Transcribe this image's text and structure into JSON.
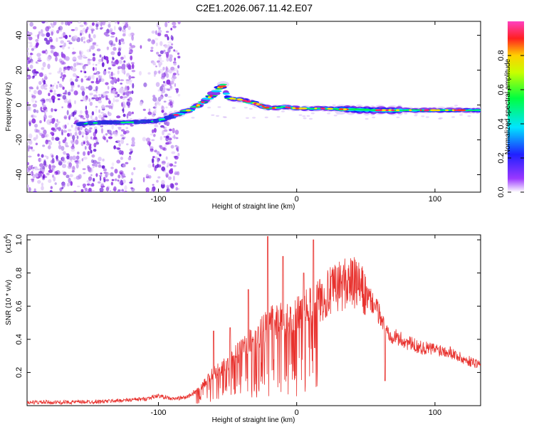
{
  "title": "C2E1.2026.067.11.42.E07",
  "chart_data": [
    {
      "type": "heatmap",
      "xlabel": "Height of straight line (km)",
      "ylabel": "Frequency (Hz)",
      "xlim": [
        -195,
        133
      ],
      "ylim": [
        -50,
        48
      ],
      "xticks": [
        -100,
        0,
        100
      ],
      "yticks": [
        -40,
        -20,
        0,
        20,
        40
      ],
      "colorbar": {
        "label": "Normalized spectral amplitude",
        "range": [
          0,
          1
        ],
        "ticks": [
          "0.0",
          "0.2",
          "0.4",
          "0.6",
          "0.8"
        ],
        "tick_values": [
          0.0,
          0.2,
          0.4,
          0.6,
          0.8
        ]
      },
      "ridge": [
        {
          "x": -158,
          "y": -11
        },
        {
          "x": -140,
          "y": -10
        },
        {
          "x": -120,
          "y": -10
        },
        {
          "x": -100,
          "y": -9
        },
        {
          "x": -92,
          "y": -7
        },
        {
          "x": -85,
          "y": -5
        },
        {
          "x": -75,
          "y": -2
        },
        {
          "x": -65,
          "y": 3
        },
        {
          "x": -58,
          "y": 8
        },
        {
          "x": -53,
          "y": 12
        },
        {
          "x": -50,
          "y": 4
        },
        {
          "x": -40,
          "y": 3
        },
        {
          "x": -30,
          "y": 1
        },
        {
          "x": -20,
          "y": -2
        },
        {
          "x": -10,
          "y": -1
        },
        {
          "x": 0,
          "y": -2
        },
        {
          "x": 20,
          "y": -2
        },
        {
          "x": 50,
          "y": -3
        },
        {
          "x": 80,
          "y": -3
        },
        {
          "x": 100,
          "y": -3
        },
        {
          "x": 133,
          "y": -3
        }
      ],
      "noise_region": [
        -195,
        -85
      ]
    },
    {
      "type": "line",
      "xlabel": "Height of straight line (km)",
      "ylabel": "SNR (10 * v/v)",
      "scale_label": "(x10",
      "scale_exp": "4",
      "scale_close": ")",
      "xlim": [
        -195,
        133
      ],
      "ylim": [
        0,
        1.03
      ],
      "xticks": [
        -100,
        0,
        100
      ],
      "yticks": [
        "0.2",
        "0.4",
        "0.6",
        "0.8",
        "1.0"
      ],
      "ytick_values": [
        0.2,
        0.4,
        0.6,
        0.8,
        1.0
      ],
      "color": "#e8312d",
      "series": {
        "name": "SNR",
        "x": [
          -195,
          -170,
          -140,
          -110,
          -100,
          -90,
          -80,
          -70,
          -60,
          -50,
          -40,
          -30,
          -20,
          -10,
          0,
          10,
          20,
          30,
          38,
          45,
          50,
          55,
          60,
          65,
          70,
          80,
          90,
          100,
          110,
          120,
          133
        ],
        "y": [
          0.02,
          0.02,
          0.025,
          0.04,
          0.06,
          0.04,
          0.05,
          0.1,
          0.2,
          0.25,
          0.35,
          0.4,
          0.5,
          0.52,
          0.55,
          0.6,
          0.66,
          0.72,
          0.75,
          0.72,
          0.66,
          0.62,
          0.55,
          0.45,
          0.42,
          0.38,
          0.35,
          0.34,
          0.33,
          0.28,
          0.25
        ],
        "spikes": [
          {
            "x": -60,
            "y": 0.45
          },
          {
            "x": -48,
            "y": 0.47
          },
          {
            "x": -35,
            "y": 0.7
          },
          {
            "x": -21,
            "y": 1.02
          },
          {
            "x": -10,
            "y": 0.9
          },
          {
            "x": 5,
            "y": 0.8
          },
          {
            "x": 12,
            "y": 1.0
          },
          {
            "x": 25,
            "y": 0.78
          },
          {
            "x": 64,
            "y": 0.15
          }
        ]
      }
    }
  ]
}
